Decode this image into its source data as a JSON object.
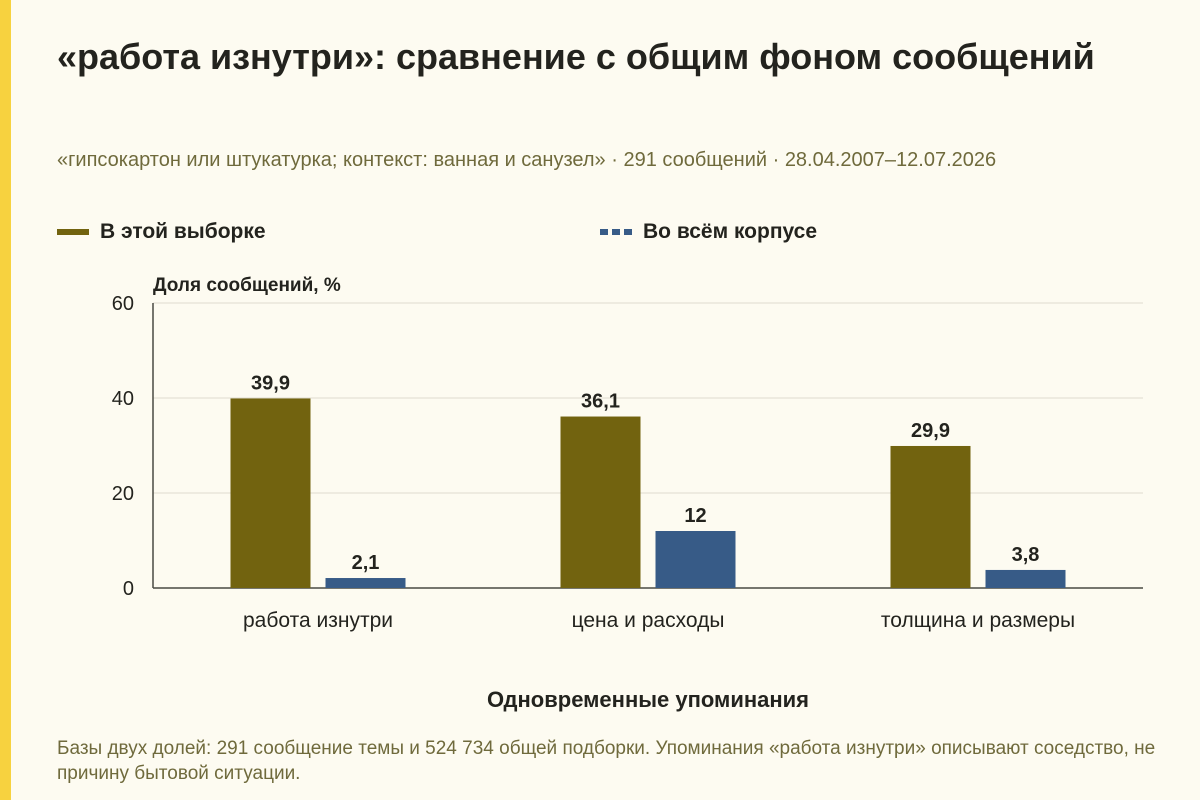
{
  "page": {
    "title": "«работа изнутри»: сравнение с общим фоном сообщений",
    "subtitle": "«гипсокартон или штукатурка; контекст: ванная и санузел» · 291 сообщений · 28.04.2007–12.07.2026",
    "note": "Базы двух долей: 291 сообщение темы и 524 734 общей подборки. Упоминания «работа изнутри» описывают соседство, не причину бытовой ситуации.",
    "colors": {
      "background": "#fdfbf1",
      "accent": "#f7d23f",
      "sample": "#72630f",
      "corpus": "#375b87",
      "grid": "#dedbcf",
      "muted_text": "#6f6a3c"
    }
  },
  "chart_data": {
    "type": "bar",
    "title": "«работа изнутри»: сравнение с общим фоном сообщений",
    "ylabel": "Доля сообщений, %",
    "xlabel": "Одновременные упоминания",
    "ylim": [
      0,
      60
    ],
    "yticks": [
      0,
      20,
      40,
      60
    ],
    "grid": true,
    "legend_position": "top-left",
    "categories": [
      "работа изнутри",
      "цена и расходы",
      "толщина и размеры"
    ],
    "series": [
      {
        "name": "В этой выборке",
        "values": [
          39.9,
          36.1,
          29.9
        ],
        "labels": [
          "39,9",
          "36,1",
          "29,9"
        ],
        "color": "#72630f"
      },
      {
        "name": "Во всём корпусе",
        "values": [
          2.1,
          12,
          3.8
        ],
        "labels": [
          "2,1",
          "12",
          "3,8"
        ],
        "color": "#375b87"
      }
    ]
  }
}
